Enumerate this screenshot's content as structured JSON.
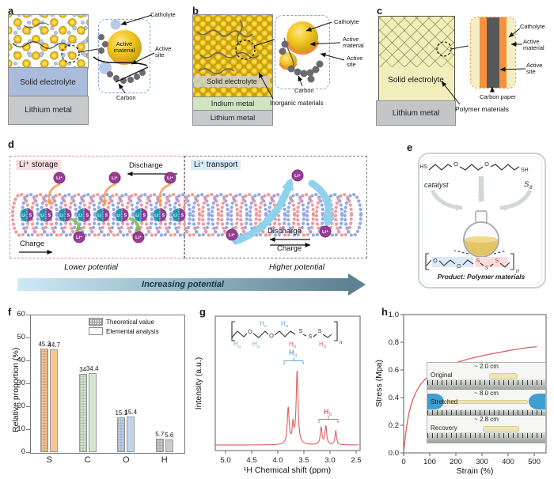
{
  "colors": {
    "active_material_yellow": "#eec11d",
    "catholyte_blue": "#b9c9e8",
    "electrolyte_blue": "#a9bcdc",
    "lithium_grey": "#c8c9cb",
    "indium_green": "#cfe5c2",
    "carbon_grey": "#6b6b6f",
    "active_site_orange": "#f5913d",
    "polymer_yellow": "#f2eebc",
    "helix_pink": "#ef9a9e",
    "helix_blue": "#96a7e6",
    "ion_purple": "#993c94",
    "bead_teal": "#1f96ad",
    "bead_purple": "#8d3f9b",
    "storage_tag_bg": "#fadfe2",
    "transport_tag_bg": "#d9ecf7",
    "gradient_bar_start": "#cdeaf4",
    "gradient_bar_end": "#5e8193",
    "nmr_line": "#dc5f5f",
    "stress_line": "#dc5f5f",
    "ha_blue": "#6aa9dc",
    "hb_red": "#dd6670"
  },
  "panels": {
    "a": {
      "label": "a",
      "electrolyte": "Solid electrolyte",
      "anode": "Lithium metal",
      "inset": {
        "catholyte": "Catholyte",
        "active_material": "Active material",
        "active_site": "Active site",
        "carbon": "Carbon"
      }
    },
    "b": {
      "label": "b",
      "electrolyte": "Solid electrolyte",
      "interlayer": "Indium metal",
      "anode": "Lithium metal",
      "inset": {
        "catholyte": "Catholyte",
        "active_material": "Active material",
        "active_site": "Active site",
        "carbon": "Carbon",
        "inorganic": "Inorganic materials"
      }
    },
    "c": {
      "label": "c",
      "electrolyte": "Solid electrolyte",
      "anode": "Lithium metal",
      "inset": {
        "catholyte": "Catholyte",
        "active_material": "Active material",
        "active_site": "Active site",
        "carbon_paper": "Carbon paper",
        "polymer": "Polymer materials"
      }
    },
    "d": {
      "label": "d",
      "storage_title": "Li⁺ storage",
      "transport_title": "Li⁺ transport",
      "discharge_left": "Discharge",
      "charge_left": "Charge",
      "discharge_right": "Discharge",
      "charge_right": "Charge",
      "lower": "Lower potential",
      "higher": "Higher potential",
      "increasing": "Increasing potential",
      "ion": "Li⁺",
      "bead_li": "Li",
      "bead_s": "S"
    },
    "e": {
      "label": "e",
      "catalyst": "catalyst",
      "s8_base": "S",
      "s8_sub": "8",
      "hs": "HS",
      "sh": "SH",
      "o": "O",
      "s": "S",
      "n": "n",
      "product": "Product: Polymer materials"
    },
    "f": {
      "label": "f"
    },
    "g": {
      "label": "g",
      "ha_base": "H",
      "ha_sub": "a",
      "hb_base": "H",
      "hb_sub": "b",
      "o": "O",
      "s": "S",
      "n": "n"
    },
    "h": {
      "label": "h"
    }
  },
  "chart_f": {
    "type": "bar",
    "categories": [
      "S",
      "C",
      "O",
      "H"
    ],
    "series": [
      {
        "name": "Theoretical value",
        "style": "hatch",
        "values": [
          45.3,
          34,
          15.1,
          5.7
        ]
      },
      {
        "name": "Elemental analysis",
        "style": "solid",
        "values": [
          44.7,
          34.4,
          15.4,
          5.6
        ]
      }
    ],
    "bar_labels": [
      [
        "45.3",
        "44.7"
      ],
      [
        "34",
        "34.4"
      ],
      [
        "15.1",
        "15.4"
      ],
      [
        "5.7",
        "5.6"
      ]
    ],
    "ylabel": "Relative proportion (%)",
    "ylim": [
      0,
      60
    ],
    "yticks": [
      0,
      10,
      20,
      30,
      40,
      50,
      60
    ],
    "category_colors": [
      "#f6c795",
      "#d5e6cf",
      "#c1d6eb",
      "#cbcbcb"
    ],
    "legend_position": "top-right",
    "grid": false
  },
  "chart_g": {
    "type": "line",
    "kind": "nmr-spectrum",
    "xlabel": "¹H Chemical shift (ppm)",
    "ylabel": "Intensity (a.u.)",
    "xticks": [
      "5.0",
      "4.5",
      "4.0",
      "3.5",
      "3.0",
      "2.5"
    ],
    "xtick_values": [
      5.0,
      4.5,
      4.0,
      3.5,
      3.0,
      2.5
    ],
    "xlim": [
      5.2,
      2.42
    ],
    "x_reversed": true,
    "line_color": "#dc5f5f",
    "peaks": [
      {
        "ppm": 3.8,
        "height": 0.47,
        "width": 0.022,
        "assignment": "Ha"
      },
      {
        "ppm": 3.71,
        "height": 0.24,
        "width": 0.018,
        "assignment": "Ha"
      },
      {
        "ppm": 3.63,
        "height": 0.95,
        "width": 0.022,
        "assignment": "Ha"
      },
      {
        "ppm": 3.17,
        "height": 0.22,
        "width": 0.02,
        "assignment": "Hb"
      },
      {
        "ppm": 3.08,
        "height": 0.24,
        "width": 0.02,
        "assignment": "Hb"
      },
      {
        "ppm": 2.89,
        "height": 0.18,
        "width": 0.018,
        "assignment": "Hb"
      }
    ]
  },
  "chart_h": {
    "type": "line",
    "xlabel": "Strain (%)",
    "ylabel": "Stress (Mpa)",
    "xlim": [
      0,
      545
    ],
    "ylim": [
      0,
      1.0
    ],
    "xticks": [
      0,
      100,
      200,
      300,
      400,
      500
    ],
    "yticks": [
      "0.0",
      "0.2",
      "0.4",
      "0.6",
      "0.8",
      "1.0"
    ],
    "line_color": "#dc5f5f",
    "points": [
      [
        0,
        0
      ],
      [
        4,
        0.07
      ],
      [
        8,
        0.14
      ],
      [
        14,
        0.22
      ],
      [
        20,
        0.285
      ],
      [
        28,
        0.345
      ],
      [
        38,
        0.4
      ],
      [
        50,
        0.45
      ],
      [
        65,
        0.495
      ],
      [
        80,
        0.528
      ],
      [
        100,
        0.562
      ],
      [
        125,
        0.594
      ],
      [
        150,
        0.618
      ],
      [
        180,
        0.64
      ],
      [
        210,
        0.658
      ],
      [
        250,
        0.68
      ],
      [
        290,
        0.698
      ],
      [
        330,
        0.714
      ],
      [
        370,
        0.728
      ],
      [
        410,
        0.742
      ],
      [
        450,
        0.755
      ],
      [
        480,
        0.762
      ],
      [
        510,
        0.768
      ]
    ],
    "inset": {
      "rows": [
        {
          "label": "Original",
          "length": "~ 2.0 cm"
        },
        {
          "label": "Stretched",
          "length": "~ 8.0 cm"
        },
        {
          "label": "Recovery",
          "length": "~ 2.8 cm"
        }
      ]
    }
  }
}
